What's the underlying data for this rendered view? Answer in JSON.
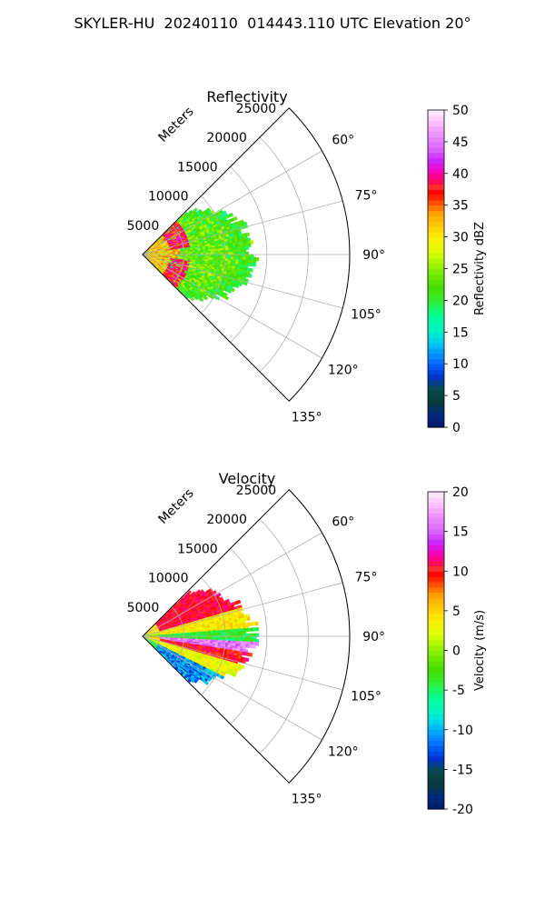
{
  "suptitle": "SKYLER-HU  20240110  014443.110 UTC Elevation 20°",
  "chart_data": [
    {
      "type": "heatmap",
      "subtype": "polar-sector",
      "title": "Reflectivity",
      "range_label": "Meters",
      "range_ticks": [
        5000,
        10000,
        15000,
        20000,
        25000
      ],
      "r_max": 25000,
      "angle_range_deg": [
        45,
        135
      ],
      "angle_ticks": [
        60,
        75,
        90,
        105,
        120,
        135
      ],
      "data_extent_m": 14000,
      "grid": true,
      "colorbar": {
        "label": "Reflectivity dBZ",
        "min": 0,
        "max": 50,
        "ticks": [
          0,
          5,
          10,
          15,
          20,
          25,
          30,
          35,
          40,
          45,
          50
        ],
        "stops": [
          [
            0,
            "#001a66"
          ],
          [
            0.04,
            "#002a80"
          ],
          [
            0.08,
            "#0a3a3a"
          ],
          [
            0.12,
            "#0a4a4a"
          ],
          [
            0.16,
            "#0033cc"
          ],
          [
            0.2,
            "#0066ff"
          ],
          [
            0.24,
            "#00a0ff"
          ],
          [
            0.27,
            "#00ccee"
          ],
          [
            0.3,
            "#00f0c8"
          ],
          [
            0.35,
            "#00ff99"
          ],
          [
            0.4,
            "#33ee33"
          ],
          [
            0.44,
            "#44dd00"
          ],
          [
            0.5,
            "#88ee00"
          ],
          [
            0.55,
            "#ddff00"
          ],
          [
            0.6,
            "#ffee00"
          ],
          [
            0.63,
            "#ffcc00"
          ],
          [
            0.67,
            "#ffaa00"
          ],
          [
            0.7,
            "#ff6600"
          ],
          [
            0.74,
            "#ff0000"
          ],
          [
            0.76,
            "#ff3333"
          ],
          [
            0.78,
            "#ff0066"
          ],
          [
            0.8,
            "#ff00aa"
          ],
          [
            0.84,
            "#cc22ff"
          ],
          [
            0.88,
            "#dd66ff"
          ],
          [
            0.93,
            "#ee99ff"
          ],
          [
            0.97,
            "#ffccff"
          ],
          [
            1,
            "#fff0ff"
          ]
        ]
      }
    },
    {
      "type": "heatmap",
      "subtype": "polar-sector",
      "title": "Velocity",
      "range_label": "Meters",
      "range_ticks": [
        5000,
        10000,
        15000,
        20000,
        25000
      ],
      "r_max": 25000,
      "angle_range_deg": [
        45,
        135
      ],
      "angle_ticks": [
        60,
        75,
        90,
        105,
        120,
        135
      ],
      "data_extent_m": 14000,
      "grid": true,
      "colorbar": {
        "label": "Velocity (m/s)",
        "min": -20,
        "max": 20,
        "ticks": [
          -20,
          -15,
          -10,
          -5,
          0,
          5,
          10,
          15,
          20
        ],
        "stops": [
          [
            0,
            "#001a66"
          ],
          [
            0.04,
            "#002a80"
          ],
          [
            0.08,
            "#0a3a3a"
          ],
          [
            0.12,
            "#0a4a4a"
          ],
          [
            0.16,
            "#0033cc"
          ],
          [
            0.2,
            "#0066ff"
          ],
          [
            0.24,
            "#00a0ff"
          ],
          [
            0.27,
            "#00ccee"
          ],
          [
            0.3,
            "#00f0c8"
          ],
          [
            0.35,
            "#00ff99"
          ],
          [
            0.4,
            "#33ee33"
          ],
          [
            0.44,
            "#44dd00"
          ],
          [
            0.5,
            "#88ee00"
          ],
          [
            0.55,
            "#ddff00"
          ],
          [
            0.6,
            "#ffee00"
          ],
          [
            0.63,
            "#ffcc00"
          ],
          [
            0.67,
            "#ffaa00"
          ],
          [
            0.7,
            "#ff6600"
          ],
          [
            0.74,
            "#ff0000"
          ],
          [
            0.76,
            "#ff3333"
          ],
          [
            0.78,
            "#ff0066"
          ],
          [
            0.8,
            "#ff00aa"
          ],
          [
            0.84,
            "#cc22ff"
          ],
          [
            0.88,
            "#dd66ff"
          ],
          [
            0.93,
            "#ee99ff"
          ],
          [
            0.97,
            "#ffccff"
          ],
          [
            1,
            "#fff0ff"
          ]
        ]
      }
    }
  ]
}
